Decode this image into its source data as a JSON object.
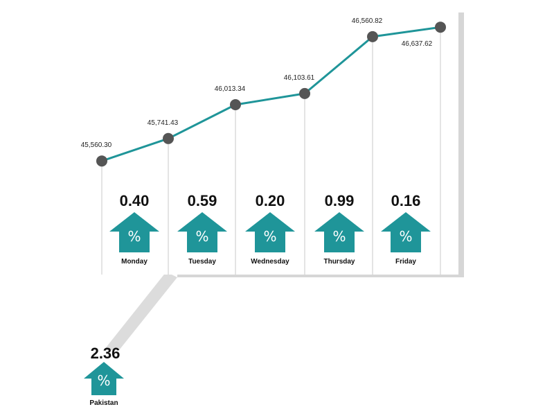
{
  "colors": {
    "line": "#1f9599",
    "arrow": "#1f9599",
    "marker": "#555555",
    "panel": "#ffffff",
    "shadow": "#d6d6d6",
    "gridline": "#c8c8c8"
  },
  "icons": {
    "arrow": "up-arrow-percent-icon"
  },
  "chart_data": {
    "type": "line",
    "title": "",
    "xlabel": "",
    "ylabel": "",
    "ylim": [
      45450,
      46700
    ],
    "categories": [
      "Monday",
      "Tuesday",
      "Wednesday",
      "Thursday",
      "Friday",
      ""
    ],
    "series": [
      {
        "values": [
          45560.3,
          45741.43,
          46013.34,
          46103.61,
          46560.82,
          46637.62
        ],
        "labels": [
          "45,560.30",
          "45,741.43",
          "46,013.34",
          "46,103.61",
          "46,560.82",
          "46,637.62"
        ]
      }
    ],
    "daily_changes": [
      {
        "day": "Monday",
        "value": "0.40",
        "symbol": "%"
      },
      {
        "day": "Tuesday",
        "value": "0.59",
        "symbol": "%"
      },
      {
        "day": "Wednesday",
        "value": "0.20",
        "symbol": "%"
      },
      {
        "day": "Thursday",
        "value": "0.99",
        "symbol": "%"
      },
      {
        "day": "Friday",
        "value": "0.16",
        "symbol": "%"
      }
    ],
    "total": {
      "label": "Pakistan",
      "value": "2.36",
      "symbol": "%"
    },
    "grid": false,
    "legend": "none"
  }
}
